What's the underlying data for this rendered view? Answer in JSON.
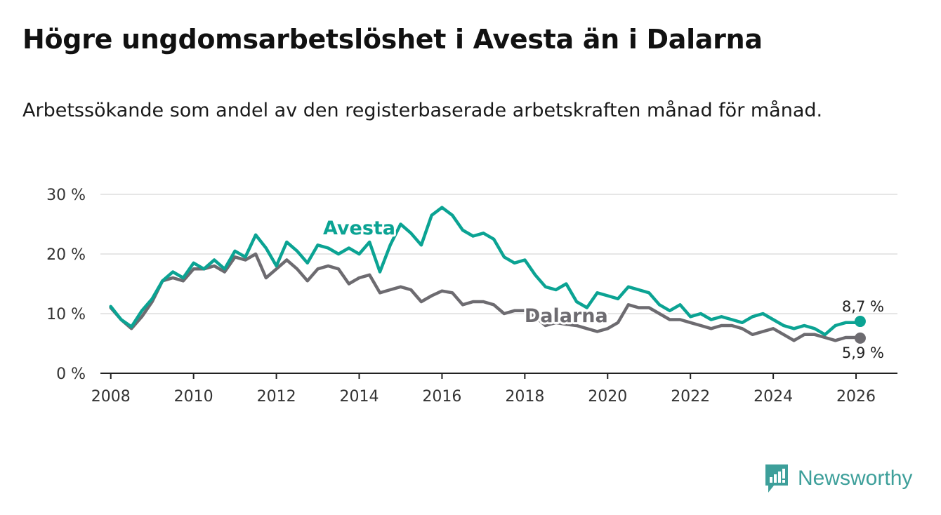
{
  "header": {
    "title": "Högre ungdomsarbetslöshet i Avesta än i Dalarna",
    "subtitle": "Arbetssökande som andel av den registerbaserade arbetskraften månad för månad."
  },
  "brand": {
    "name": "Newsworthy",
    "color": "#3d9f9a"
  },
  "colors": {
    "avesta": "#0ba393",
    "dalarna": "#6d6b70",
    "grid": "#dddddd",
    "axis": "#222222"
  },
  "chart_data": {
    "type": "line",
    "title": "Högre ungdomsarbetslöshet i Avesta än i Dalarna",
    "subtitle": "Arbetssökande som andel av den registerbaserade arbetskraften månad för månad.",
    "xlabel": "",
    "ylabel": "",
    "xlim": [
      2007.75,
      2027.0
    ],
    "ylim": [
      0,
      30
    ],
    "x_ticks": [
      2008,
      2010,
      2012,
      2014,
      2016,
      2018,
      2020,
      2022,
      2024,
      2026
    ],
    "y_ticks": [
      {
        "value": 0,
        "label": "0 %"
      },
      {
        "value": 10,
        "label": "10 %"
      },
      {
        "value": 20,
        "label": "20 %"
      },
      {
        "value": 30,
        "label": "30 %"
      }
    ],
    "grid": true,
    "series": [
      {
        "name": "Avesta",
        "color": "#0ba393",
        "end_label": "8,7 %",
        "points": [
          [
            2008.0,
            11.2
          ],
          [
            2008.25,
            9.0
          ],
          [
            2008.5,
            7.8
          ],
          [
            2008.75,
            10.5
          ],
          [
            2009.0,
            12.5
          ],
          [
            2009.25,
            15.5
          ],
          [
            2009.5,
            17.0
          ],
          [
            2009.75,
            16.0
          ],
          [
            2010.0,
            18.5
          ],
          [
            2010.25,
            17.5
          ],
          [
            2010.5,
            19.0
          ],
          [
            2010.75,
            17.5
          ],
          [
            2011.0,
            20.5
          ],
          [
            2011.25,
            19.5
          ],
          [
            2011.5,
            23.2
          ],
          [
            2011.75,
            21.0
          ],
          [
            2012.0,
            18.0
          ],
          [
            2012.25,
            22.0
          ],
          [
            2012.5,
            20.5
          ],
          [
            2012.75,
            18.5
          ],
          [
            2013.0,
            21.5
          ],
          [
            2013.25,
            21.0
          ],
          [
            2013.5,
            20.0
          ],
          [
            2013.75,
            21.0
          ],
          [
            2014.0,
            20.0
          ],
          [
            2014.25,
            22.0
          ],
          [
            2014.5,
            17.0
          ],
          [
            2014.75,
            21.5
          ],
          [
            2015.0,
            25.0
          ],
          [
            2015.25,
            23.5
          ],
          [
            2015.5,
            21.5
          ],
          [
            2015.75,
            26.5
          ],
          [
            2016.0,
            27.8
          ],
          [
            2016.25,
            26.5
          ],
          [
            2016.5,
            24.0
          ],
          [
            2016.75,
            23.0
          ],
          [
            2017.0,
            23.5
          ],
          [
            2017.25,
            22.5
          ],
          [
            2017.5,
            19.5
          ],
          [
            2017.75,
            18.5
          ],
          [
            2018.0,
            19.0
          ],
          [
            2018.25,
            16.5
          ],
          [
            2018.5,
            14.5
          ],
          [
            2018.75,
            14.0
          ],
          [
            2019.0,
            15.0
          ],
          [
            2019.25,
            12.0
          ],
          [
            2019.5,
            11.0
          ],
          [
            2019.75,
            13.5
          ],
          [
            2020.0,
            13.0
          ],
          [
            2020.25,
            12.5
          ],
          [
            2020.5,
            14.5
          ],
          [
            2020.75,
            14.0
          ],
          [
            2021.0,
            13.5
          ],
          [
            2021.25,
            11.5
          ],
          [
            2021.5,
            10.5
          ],
          [
            2021.75,
            11.5
          ],
          [
            2022.0,
            9.5
          ],
          [
            2022.25,
            10.0
          ],
          [
            2022.5,
            9.0
          ],
          [
            2022.75,
            9.5
          ],
          [
            2023.0,
            9.0
          ],
          [
            2023.25,
            8.5
          ],
          [
            2023.5,
            9.5
          ],
          [
            2023.75,
            10.0
          ],
          [
            2024.0,
            9.0
          ],
          [
            2024.25,
            8.0
          ],
          [
            2024.5,
            7.5
          ],
          [
            2024.75,
            8.0
          ],
          [
            2025.0,
            7.5
          ],
          [
            2025.25,
            6.5
          ],
          [
            2025.5,
            8.0
          ],
          [
            2025.75,
            8.5
          ],
          [
            2026.0,
            8.5
          ],
          [
            2026.1,
            8.7
          ]
        ]
      },
      {
        "name": "Dalarna",
        "color": "#6d6b70",
        "end_label": "5,9 %",
        "points": [
          [
            2008.0,
            11.0
          ],
          [
            2008.25,
            9.0
          ],
          [
            2008.5,
            7.5
          ],
          [
            2008.75,
            9.5
          ],
          [
            2009.0,
            12.0
          ],
          [
            2009.25,
            15.5
          ],
          [
            2009.5,
            16.0
          ],
          [
            2009.75,
            15.5
          ],
          [
            2010.0,
            17.5
          ],
          [
            2010.25,
            17.5
          ],
          [
            2010.5,
            18.0
          ],
          [
            2010.75,
            17.0
          ],
          [
            2011.0,
            19.5
          ],
          [
            2011.25,
            19.0
          ],
          [
            2011.5,
            20.0
          ],
          [
            2011.75,
            16.0
          ],
          [
            2012.0,
            17.5
          ],
          [
            2012.25,
            19.0
          ],
          [
            2012.5,
            17.5
          ],
          [
            2012.75,
            15.5
          ],
          [
            2013.0,
            17.5
          ],
          [
            2013.25,
            18.0
          ],
          [
            2013.5,
            17.5
          ],
          [
            2013.75,
            15.0
          ],
          [
            2014.0,
            16.0
          ],
          [
            2014.25,
            16.5
          ],
          [
            2014.5,
            13.5
          ],
          [
            2014.75,
            14.0
          ],
          [
            2015.0,
            14.5
          ],
          [
            2015.25,
            14.0
          ],
          [
            2015.5,
            12.0
          ],
          [
            2015.75,
            13.0
          ],
          [
            2016.0,
            13.8
          ],
          [
            2016.25,
            13.5
          ],
          [
            2016.5,
            11.5
          ],
          [
            2016.75,
            12.0
          ],
          [
            2017.0,
            12.0
          ],
          [
            2017.25,
            11.5
          ],
          [
            2017.5,
            10.0
          ],
          [
            2017.75,
            10.5
          ],
          [
            2018.0,
            10.5
          ],
          [
            2018.25,
            9.5
          ],
          [
            2018.5,
            8.0
          ],
          [
            2018.75,
            8.5
          ],
          [
            2019.0,
            8.2
          ],
          [
            2019.25,
            8.0
          ],
          [
            2019.5,
            7.5
          ],
          [
            2019.75,
            7.0
          ],
          [
            2020.0,
            7.5
          ],
          [
            2020.25,
            8.5
          ],
          [
            2020.5,
            11.5
          ],
          [
            2020.75,
            11.0
          ],
          [
            2021.0,
            11.0
          ],
          [
            2021.25,
            10.0
          ],
          [
            2021.5,
            9.0
          ],
          [
            2021.75,
            9.0
          ],
          [
            2022.0,
            8.5
          ],
          [
            2022.25,
            8.0
          ],
          [
            2022.5,
            7.5
          ],
          [
            2022.75,
            8.0
          ],
          [
            2023.0,
            8.0
          ],
          [
            2023.25,
            7.5
          ],
          [
            2023.5,
            6.5
          ],
          [
            2023.75,
            7.0
          ],
          [
            2024.0,
            7.5
          ],
          [
            2024.25,
            6.5
          ],
          [
            2024.5,
            5.5
          ],
          [
            2024.75,
            6.5
          ],
          [
            2025.0,
            6.5
          ],
          [
            2025.25,
            6.0
          ],
          [
            2025.5,
            5.5
          ],
          [
            2025.75,
            6.0
          ],
          [
            2026.0,
            6.0
          ],
          [
            2026.1,
            5.9
          ]
        ]
      }
    ],
    "annotations": [
      {
        "text": "Avesta",
        "series": "Avesta",
        "x": 2014.0,
        "y": 23.3
      },
      {
        "text": "Dalarna",
        "series": "Dalarna",
        "x": 2019.0,
        "y": 8.6
      }
    ]
  }
}
